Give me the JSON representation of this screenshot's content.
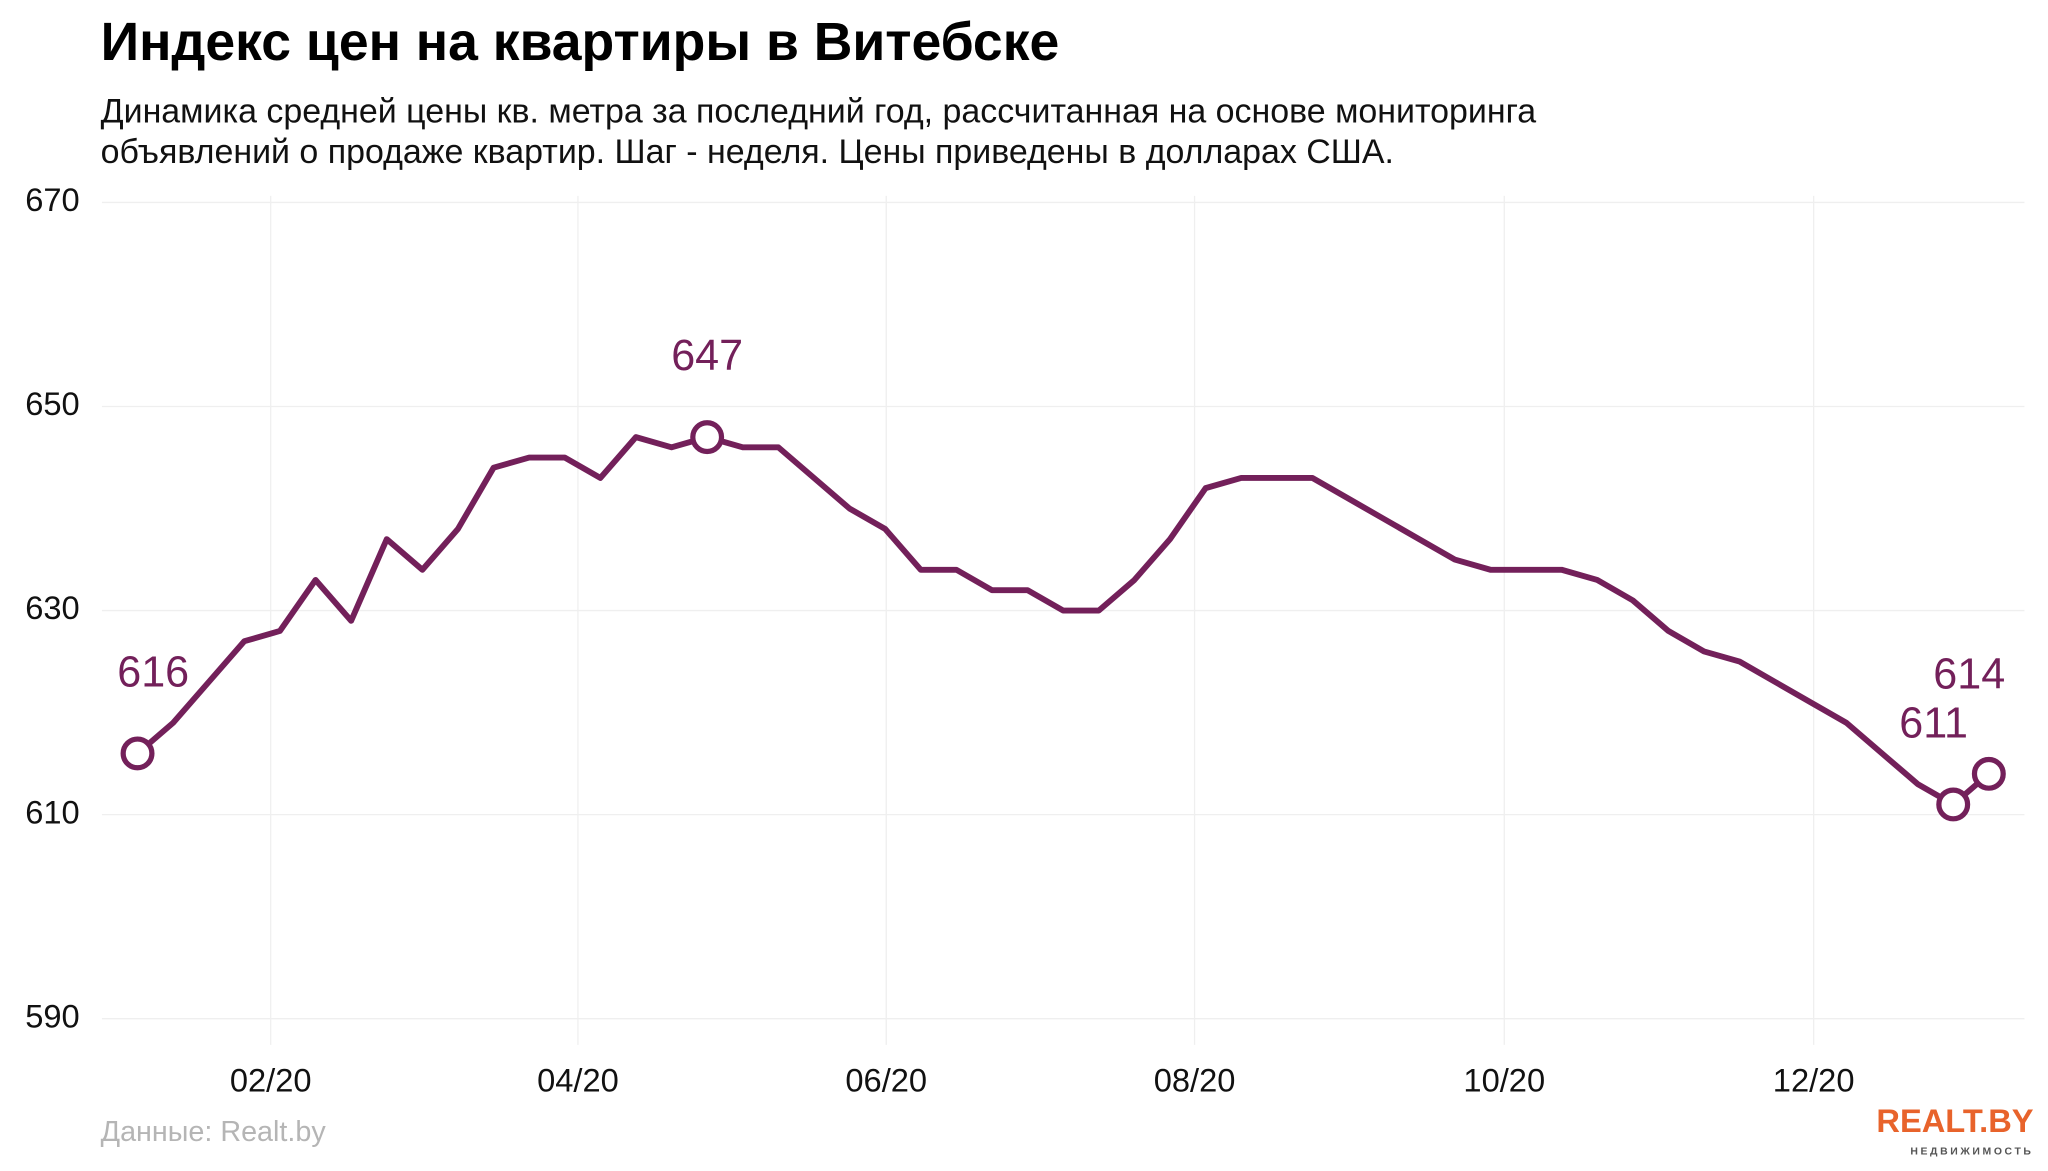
{
  "chart_data": {
    "type": "line",
    "title": "Индекс цен на квартиры в Витебске",
    "subtitle": [
      "Динамика средней цены кв. метра за последний год, рассчитанная на основе мониторинга",
      "объявлений о продаже квартир. Шаг - неделя. Цены приведены в долларах США."
    ],
    "source": "Данные: Realt.by",
    "logo": {
      "text": "REALT.BY",
      "sub": "НЕДВИЖИМОСТЬ"
    },
    "categories": [
      null,
      null,
      null,
      null,
      null,
      null,
      null,
      null,
      null,
      null,
      null,
      null,
      null,
      null,
      null,
      null,
      null,
      null,
      null,
      null,
      null,
      null,
      null,
      null,
      null,
      null,
      null,
      null,
      null,
      null,
      null,
      null,
      null,
      null,
      null,
      null,
      null,
      null,
      null,
      null,
      null,
      null,
      null,
      null,
      null,
      null,
      null,
      null,
      null,
      null,
      null,
      null,
      null
    ],
    "values": [
      616,
      619,
      623,
      627,
      628,
      633,
      629,
      637,
      634,
      638,
      644,
      645,
      645,
      643,
      647,
      646,
      647,
      646,
      646,
      643,
      640,
      638,
      634,
      634,
      632,
      632,
      630,
      630,
      633,
      637,
      642,
      643,
      643,
      643,
      641,
      639,
      637,
      635,
      634,
      634,
      634,
      633,
      631,
      628,
      626,
      625,
      623,
      621,
      619,
      616,
      613,
      611,
      614
    ],
    "color": "#73205a",
    "highlight_points": [
      0,
      16,
      51,
      52
    ],
    "xlim": [
      -1,
      53
    ],
    "xticks": [
      {
        "value": 3.74,
        "label": "02/20"
      },
      {
        "value": 12.37,
        "label": "04/20"
      },
      {
        "value": 21.03,
        "label": "06/20"
      },
      {
        "value": 29.69,
        "label": "08/20"
      },
      {
        "value": 38.39,
        "label": "10/20"
      },
      {
        "value": 47.08,
        "label": "12/20"
      }
    ],
    "ylim": [
      590,
      670
    ],
    "yticks": [
      590,
      610,
      630,
      650,
      670
    ],
    "grid": true
  }
}
